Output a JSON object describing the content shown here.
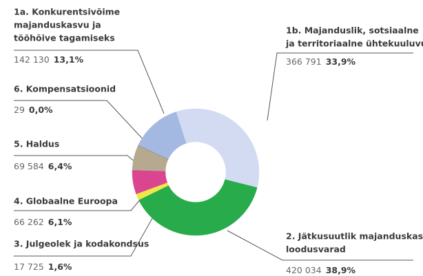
{
  "chart_data": {
    "type": "pie",
    "categories": [
      [
        "1a.  Konkurentsivõime",
        "majanduskasvu ja",
        "tööhõive tagamiseks"
      ],
      [
        "1b.  Majanduslik, sotsiaalne",
        "ja territoriaalne ühtekuuluvus"
      ],
      [
        "2. Jätkusuutlik majanduskasv:",
        "loodusvarad"
      ],
      [
        "3. Julgeolek ja kodakondsus"
      ],
      [
        "4. Globaalne Euroopa"
      ],
      [
        "5. Haldus"
      ],
      [
        "6. Kompensatsioonid"
      ]
    ],
    "values": [
      142130,
      366791,
      420034,
      17725,
      66262,
      69584,
      29
    ],
    "value_labels": [
      "142 130",
      "366 791",
      "420 034",
      "17 725",
      "66 262",
      "69 584",
      "29"
    ],
    "percentages": [
      13.1,
      33.9,
      38.9,
      1.6,
      6.1,
      6.4,
      0.0
    ],
    "percentage_labels": [
      "13,1%",
      "33,9%",
      "38,9%",
      "1,6%",
      "6,1%",
      "6,4%",
      "0,0%"
    ],
    "colors": [
      "#a4b9e1",
      "#d3dbf2",
      "#27ab4b",
      "#f1e64a",
      "#da4590",
      "#b6a990",
      "#8c8c8c"
    ],
    "donut": true
  }
}
